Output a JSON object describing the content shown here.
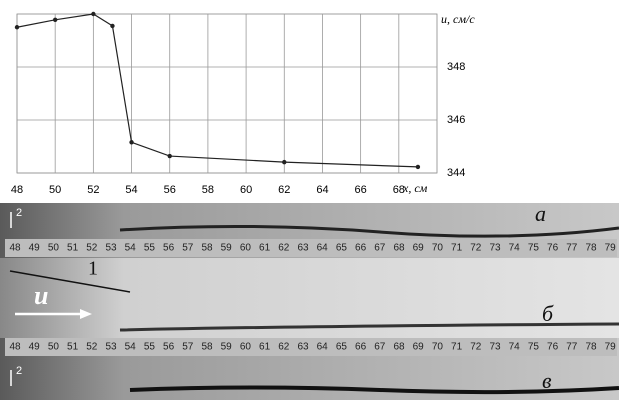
{
  "chart_data": {
    "type": "line",
    "x_label": "x, см",
    "y_label": "u, см/с",
    "x": [
      48,
      50,
      52,
      53,
      54,
      56,
      62,
      69
    ],
    "series": [
      {
        "name": "u",
        "color": "#222222",
        "values": [
          349.5,
          349.78,
          350,
          349.55,
          345.16,
          344.64,
          344.41,
          344.23
        ]
      }
    ],
    "xlim": [
      48,
      70
    ],
    "xticks": [
      48,
      50,
      52,
      54,
      56,
      58,
      60,
      62,
      64,
      66,
      68
    ],
    "ylim": [
      344,
      350
    ],
    "yticks": [
      344,
      346,
      348
    ],
    "grid": true
  },
  "photo": {
    "panel_labels": [
      "а",
      "б",
      "в"
    ],
    "callout": "1",
    "depth_mark": "2",
    "velocity": "u",
    "ruler": [
      "48",
      "49",
      "50",
      "51",
      "52",
      "53",
      "54",
      "55",
      "56",
      "57",
      "58",
      "59",
      "60",
      "61",
      "62",
      "63",
      "64",
      "65",
      "66",
      "67",
      "68",
      "69",
      "70",
      "71",
      "72",
      "73",
      "74",
      "75",
      "76",
      "77",
      "78",
      "79"
    ]
  }
}
